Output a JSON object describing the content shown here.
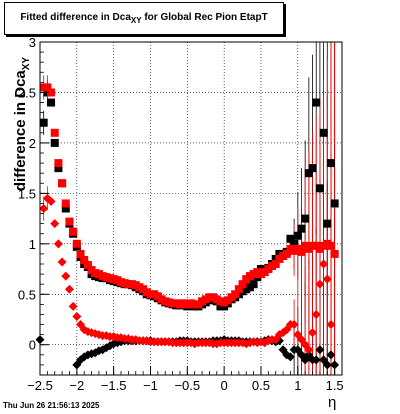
{
  "title": {
    "text": "Fitted difference in Dca",
    "sub": "XY",
    "suffix": " for Global Rec Pion EtapT"
  },
  "footer": {
    "timestamp": "Thu Jun 26 21:56:13 2025"
  },
  "colors": {
    "series1": "#000000",
    "series2": "#ff0000",
    "series3": "#000000",
    "series4": "#ff0000",
    "frame": "#000000"
  },
  "chart_data": {
    "type": "scatter",
    "title": "Fitted difference in Dca_XY for Global Rec Pion EtapT",
    "xlabel": "η",
    "ylabel": "difference in Dca_XY",
    "xlim": [
      -2.5,
      1.6
    ],
    "ylim": [
      -0.3,
      3.0
    ],
    "grid": true,
    "x_ticks": [
      "−2.5",
      "−2",
      "−1.5",
      "−1",
      "−0.5",
      "0",
      "0.5",
      "1",
      "1.5"
    ],
    "x_tick_values": [
      -2.5,
      -2.0,
      -1.5,
      -1.0,
      -0.5,
      0.0,
      0.5,
      1.0,
      1.5
    ],
    "y_ticks": [
      "0",
      "0.5",
      "1",
      "1.5",
      "2",
      "2.5",
      "3"
    ],
    "y_tick_values": [
      0,
      0.5,
      1.0,
      1.5,
      2.0,
      2.5,
      3.0
    ],
    "series": [
      {
        "marker": "square",
        "color": "black",
        "x": [
          -2.45,
          -2.4,
          -2.35,
          -2.3,
          -2.25,
          -2.2,
          -2.15,
          -2.1,
          -2.05,
          -2.0,
          -1.95,
          -1.9,
          -1.85,
          -1.8,
          -1.75,
          -1.7,
          -1.65,
          -1.6,
          -1.55,
          -1.5,
          -1.45,
          -1.4,
          -1.35,
          -1.3,
          -1.25,
          -1.2,
          -1.15,
          -1.1,
          -1.05,
          -1.0,
          -0.95,
          -0.9,
          -0.85,
          -0.8,
          -0.75,
          -0.7,
          -0.65,
          -0.6,
          -0.55,
          -0.5,
          -0.45,
          -0.4,
          -0.35,
          -0.3,
          -0.25,
          -0.2,
          -0.15,
          -0.1,
          -0.05,
          0.0,
          0.05,
          0.1,
          0.15,
          0.2,
          0.25,
          0.3,
          0.35,
          0.4,
          0.45,
          0.5,
          0.55,
          0.6,
          0.65,
          0.7,
          0.75,
          0.8,
          0.85,
          0.9,
          0.95,
          1.0,
          1.05,
          1.1,
          1.15,
          1.2,
          1.25,
          1.3,
          1.35,
          1.4,
          1.45,
          1.5
        ],
        "y": [
          2.2,
          2.5,
          2.4,
          2.0,
          1.75,
          1.6,
          1.35,
          1.2,
          1.1,
          0.97,
          0.87,
          0.8,
          0.77,
          0.7,
          0.68,
          0.67,
          0.66,
          0.66,
          0.64,
          0.63,
          0.62,
          0.61,
          0.6,
          0.6,
          0.59,
          0.57,
          0.55,
          0.53,
          0.5,
          0.49,
          0.48,
          0.46,
          0.44,
          0.42,
          0.41,
          0.4,
          0.39,
          0.39,
          0.4,
          0.38,
          0.39,
          0.38,
          0.38,
          0.4,
          0.42,
          0.44,
          0.45,
          0.43,
          0.38,
          0.38,
          0.41,
          0.45,
          0.47,
          0.5,
          0.53,
          0.55,
          0.57,
          0.6,
          0.67,
          0.75,
          0.74,
          0.76,
          0.8,
          0.85,
          0.9,
          0.88,
          0.92,
          1.05,
          1.0,
          1.08,
          1.15,
          1.25,
          1.7,
          1.75,
          2.4,
          1.55,
          2.1,
          1.2,
          1.8,
          1.4
        ]
      },
      {
        "marker": "square",
        "color": "red",
        "x": [
          -2.45,
          -2.4,
          -2.35,
          -2.3,
          -2.25,
          -2.2,
          -2.15,
          -2.1,
          -2.05,
          -2.0,
          -1.95,
          -1.9,
          -1.85,
          -1.8,
          -1.75,
          -1.7,
          -1.65,
          -1.6,
          -1.55,
          -1.5,
          -1.45,
          -1.4,
          -1.35,
          -1.3,
          -1.25,
          -1.2,
          -1.15,
          -1.1,
          -1.05,
          -1.0,
          -0.95,
          -0.9,
          -0.85,
          -0.8,
          -0.75,
          -0.7,
          -0.65,
          -0.6,
          -0.55,
          -0.5,
          -0.45,
          -0.4,
          -0.35,
          -0.3,
          -0.25,
          -0.2,
          -0.15,
          -0.1,
          -0.05,
          0.0,
          0.05,
          0.1,
          0.15,
          0.2,
          0.25,
          0.3,
          0.35,
          0.4,
          0.45,
          0.5,
          0.55,
          0.6,
          0.65,
          0.7,
          0.75,
          0.8,
          0.85,
          0.9,
          0.95,
          1.0,
          1.05,
          1.1,
          1.15,
          1.2,
          1.25,
          1.3,
          1.35,
          1.4,
          1.45,
          1.5
        ],
        "y": [
          2.55,
          2.55,
          2.5,
          2.1,
          1.8,
          1.6,
          1.4,
          1.22,
          1.12,
          1.0,
          0.9,
          0.84,
          0.79,
          0.74,
          0.71,
          0.7,
          0.68,
          0.67,
          0.66,
          0.65,
          0.64,
          0.62,
          0.61,
          0.6,
          0.6,
          0.59,
          0.57,
          0.55,
          0.52,
          0.5,
          0.5,
          0.48,
          0.45,
          0.43,
          0.42,
          0.41,
          0.41,
          0.4,
          0.41,
          0.4,
          0.41,
          0.4,
          0.4,
          0.43,
          0.45,
          0.47,
          0.47,
          0.45,
          0.43,
          0.42,
          0.44,
          0.47,
          0.5,
          0.55,
          0.6,
          0.65,
          0.68,
          0.7,
          0.72,
          0.7,
          0.72,
          0.75,
          0.78,
          0.8,
          0.85,
          0.88,
          0.9,
          0.95,
          0.93,
          0.95,
          0.92,
          0.98,
          0.95,
          0.98,
          0.98,
          0.95,
          0.98,
          1.0,
          0.98,
          0.9
        ]
      },
      {
        "marker": "diamond",
        "color": "black",
        "x": [
          -2.5,
          -2.0,
          -1.95,
          -1.9,
          -1.85,
          -1.8,
          -1.75,
          -1.7,
          -1.65,
          -1.6,
          -1.55,
          -1.5,
          -1.45,
          -1.4,
          -1.35,
          -1.3,
          -1.25,
          -1.2,
          -1.15,
          -1.1,
          -1.05,
          -1.0,
          -0.95,
          -0.9,
          -0.85,
          -0.8,
          -0.75,
          -0.7,
          -0.65,
          -0.6,
          -0.55,
          -0.5,
          -0.45,
          -0.4,
          -0.35,
          -0.3,
          -0.25,
          -0.2,
          -0.15,
          -0.1,
          -0.05,
          0.0,
          0.05,
          0.1,
          0.15,
          0.2,
          0.25,
          0.3,
          0.35,
          0.4,
          0.45,
          0.5,
          0.55,
          0.6,
          0.65,
          0.7,
          0.75,
          0.8,
          0.85,
          0.9,
          0.95,
          1.0,
          1.05,
          1.1,
          1.15,
          1.2,
          1.25,
          1.3,
          1.35,
          1.4,
          1.45,
          1.5
        ],
        "y": [
          0.05,
          -0.2,
          -0.15,
          -0.12,
          -0.1,
          -0.09,
          -0.08,
          -0.06,
          -0.05,
          -0.03,
          -0.01,
          0.01,
          0.02,
          0.03,
          0.04,
          0.04,
          0.04,
          0.04,
          0.04,
          0.04,
          0.04,
          0.04,
          0.03,
          0.03,
          0.03,
          0.03,
          0.03,
          0.03,
          0.03,
          0.04,
          0.04,
          0.04,
          0.03,
          0.03,
          0.03,
          0.03,
          0.03,
          0.03,
          0.04,
          0.04,
          0.04,
          0.05,
          0.04,
          0.04,
          0.04,
          0.04,
          0.03,
          0.03,
          0.03,
          0.03,
          0.03,
          0.03,
          0.04,
          0.05,
          0.04,
          0.03,
          0.04,
          -0.05,
          -0.1,
          -0.12,
          -0.05,
          -0.05,
          -0.1,
          -0.15,
          -0.1,
          -0.15,
          -0.15,
          -0.05,
          -0.15,
          -0.2,
          -0.1,
          -0.2
        ]
      },
      {
        "marker": "diamond",
        "color": "red",
        "x": [
          -2.45,
          -2.4,
          -2.35,
          -2.3,
          -2.25,
          -2.2,
          -2.15,
          -2.1,
          -2.05,
          -2.0,
          -1.95,
          -1.9,
          -1.85,
          -1.8,
          -1.75,
          -1.7,
          -1.65,
          -1.6,
          -1.55,
          -1.5,
          -1.45,
          -1.4,
          -1.35,
          -1.3,
          -1.25,
          -1.2,
          -1.15,
          -1.1,
          -1.05,
          -1.0,
          -0.95,
          -0.9,
          -0.85,
          -0.8,
          -0.75,
          -0.7,
          -0.65,
          -0.6,
          -0.55,
          -0.5,
          -0.45,
          -0.4,
          -0.35,
          -0.3,
          -0.25,
          -0.2,
          -0.15,
          -0.1,
          -0.05,
          0.0,
          0.05,
          0.1,
          0.15,
          0.2,
          0.25,
          0.3,
          0.35,
          0.4,
          0.45,
          0.5,
          0.55,
          0.6,
          0.65,
          0.7,
          0.75,
          0.8,
          0.85,
          0.9,
          0.95,
          1.0,
          1.05,
          1.1,
          1.15,
          1.2,
          1.25,
          1.3,
          1.35,
          1.4,
          1.45,
          1.5
        ],
        "y": [
          1.35,
          1.45,
          1.42,
          1.2,
          1.0,
          0.82,
          0.68,
          0.55,
          0.38,
          0.28,
          0.2,
          0.15,
          0.13,
          0.12,
          0.11,
          0.1,
          0.09,
          0.09,
          0.08,
          0.08,
          0.07,
          0.07,
          0.06,
          0.06,
          0.05,
          0.05,
          0.04,
          0.04,
          0.04,
          0.03,
          0.03,
          0.03,
          0.03,
          0.03,
          0.03,
          0.02,
          0.02,
          0.02,
          0.02,
          0.02,
          0.02,
          0.01,
          0.02,
          0.02,
          0.02,
          0.02,
          0.01,
          0.01,
          0.02,
          0.02,
          0.02,
          0.02,
          0.02,
          0.02,
          0.02,
          0.01,
          0.02,
          0.03,
          0.02,
          0.03,
          0.02,
          0.04,
          0.05,
          0.05,
          0.1,
          0.12,
          0.15,
          0.2,
          0.2,
          0.1,
          0.05,
          0.0,
          -0.05,
          0.12,
          0.3,
          0.6,
          0.8,
          0.65,
          0.2,
          0.9
        ]
      }
    ]
  }
}
